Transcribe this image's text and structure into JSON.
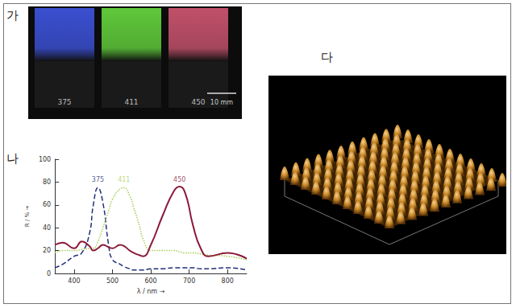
{
  "panel_labels": [
    "가",
    "나",
    "다"
  ],
  "photo": {
    "samples": [
      {
        "label": "375",
        "color": "#3a4fd0"
      },
      {
        "label": "411",
        "color": "#5fc83a"
      },
      {
        "label": "450",
        "color": "#c0506a"
      }
    ],
    "scale_bar": "10 mm"
  },
  "chart_data": {
    "type": "line",
    "x_label": "λ / nm →",
    "y_label": "R / % →",
    "x": [
      350,
      370,
      400,
      420,
      440,
      450,
      462,
      475,
      490,
      500,
      520,
      530,
      545,
      555,
      570,
      580,
      600,
      630,
      660,
      675,
      690,
      710,
      730,
      750,
      800,
      850
    ],
    "series": [
      {
        "color": "#1f2f7a",
        "line_style": "dashed",
        "values": [
          5,
          8,
          15,
          18,
          35,
          60,
          75,
          62,
          25,
          12,
          8,
          6,
          4,
          3,
          3,
          3,
          4,
          4,
          5,
          5,
          5,
          5,
          4,
          4,
          5,
          3
        ]
      },
      {
        "color": "#a8cf5a",
        "line_style": "dotted",
        "values": [
          18,
          20,
          20,
          21,
          22,
          22,
          28,
          40,
          55,
          65,
          74,
          75,
          68,
          58,
          42,
          30,
          20,
          20,
          20,
          19,
          18,
          18,
          17,
          16,
          15,
          12
        ]
      },
      {
        "color": "#8b1a3a",
        "line_style": "solid",
        "values": [
          25,
          27,
          22,
          28,
          24,
          20,
          22,
          25,
          23,
          22,
          25,
          24,
          20,
          18,
          16,
          15,
          25,
          50,
          72,
          76,
          70,
          42,
          22,
          15,
          18,
          13
        ]
      }
    ],
    "annotations": [
      {
        "text": "375",
        "x": 462,
        "y": 82,
        "color": "#1f2f7a"
      },
      {
        "text": "411",
        "x": 530,
        "y": 82,
        "color": "#a8cf5a"
      },
      {
        "text": "450",
        "x": 675,
        "y": 82,
        "color": "#8b1a3a"
      }
    ],
    "xlim": [
      350,
      850
    ],
    "xticks": [
      400,
      500,
      600,
      700,
      800
    ],
    "ylim": [
      0,
      100
    ],
    "yticks": [
      0,
      20,
      40,
      60,
      80,
      100
    ],
    "grid": false
  }
}
